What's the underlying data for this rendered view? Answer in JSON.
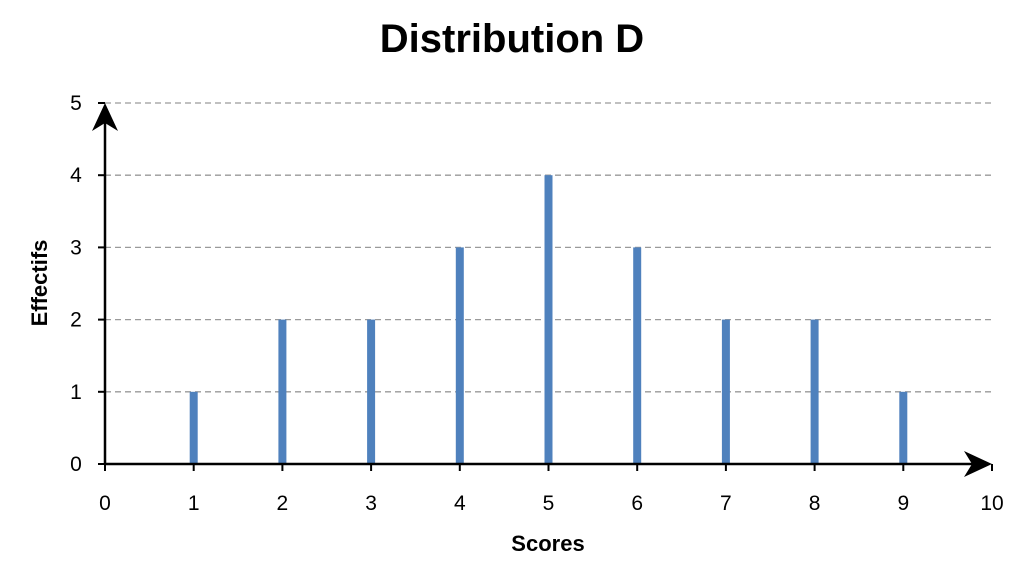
{
  "chart_data": {
    "type": "bar",
    "title": "Distribution D",
    "xlabel": "Scores",
    "ylabel": "Effectifs",
    "x": [
      1,
      2,
      3,
      4,
      5,
      6,
      7,
      8,
      9
    ],
    "values": [
      1,
      2,
      2,
      3,
      4,
      3,
      2,
      2,
      1
    ],
    "xlim": [
      0,
      10
    ],
    "ylim": [
      0,
      5
    ],
    "x_ticks": [
      "0",
      "1",
      "2",
      "3",
      "4",
      "5",
      "6",
      "7",
      "8",
      "9",
      "10"
    ],
    "y_ticks": [
      "0",
      "1",
      "2",
      "3",
      "4",
      "5"
    ],
    "grid": "horizontal dashed",
    "bar_color": "#4f81bd",
    "legend": "none"
  }
}
